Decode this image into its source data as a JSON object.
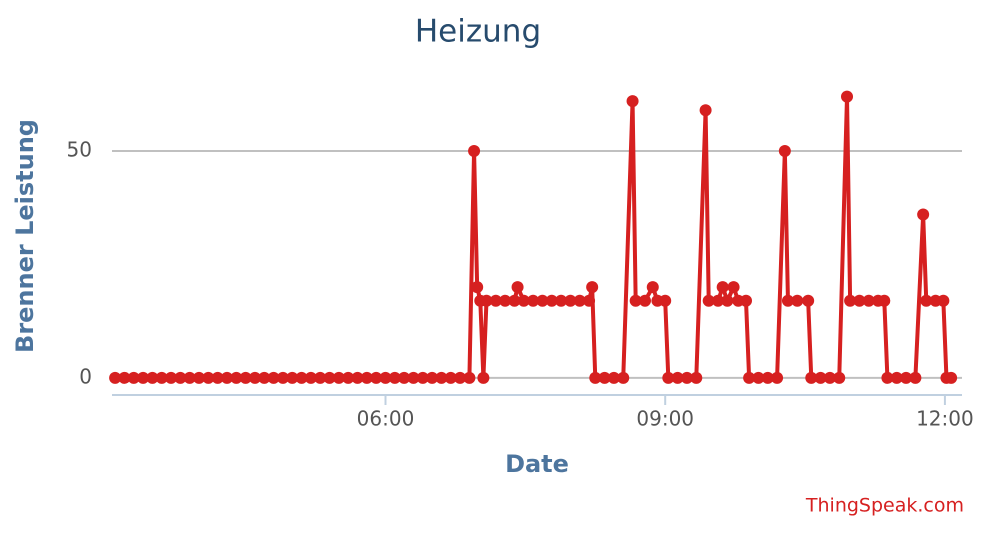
{
  "chart_data": {
    "type": "line",
    "title": "Heizung",
    "xlabel": "Date",
    "ylabel": "Brenner Leistung",
    "credit": "ThingSpeak.com",
    "color": "#d62020",
    "x": [
      "03:06",
      "03:12",
      "03:18",
      "03:24",
      "03:30",
      "03:36",
      "03:42",
      "03:48",
      "03:54",
      "04:00",
      "04:06",
      "04:12",
      "04:18",
      "04:24",
      "04:30",
      "04:36",
      "04:42",
      "04:48",
      "04:54",
      "05:00",
      "05:06",
      "05:12",
      "05:18",
      "05:24",
      "05:30",
      "05:36",
      "05:42",
      "05:48",
      "05:54",
      "06:00",
      "06:06",
      "06:12",
      "06:18",
      "06:24",
      "06:30",
      "06:36",
      "06:42",
      "06:48",
      "06:54",
      "06:57",
      "06:59",
      "07:01",
      "07:03",
      "07:05",
      "07:11",
      "07:17",
      "07:23",
      "07:25",
      "07:29",
      "07:35",
      "07:41",
      "07:47",
      "07:53",
      "07:59",
      "08:05",
      "08:11",
      "08:13",
      "08:15",
      "08:21",
      "08:27",
      "08:33",
      "08:39",
      "08:41",
      "08:47",
      "08:52",
      "08:55",
      "09:00",
      "09:02",
      "09:08",
      "09:14",
      "09:20",
      "09:26",
      "09:28",
      "09:34",
      "09:37",
      "09:40",
      "09:44",
      "09:47",
      "09:52",
      "09:54",
      "10:00",
      "10:06",
      "10:12",
      "10:17",
      "10:19",
      "10:25",
      "10:32",
      "10:34",
      "10:40",
      "10:46",
      "10:52",
      "10:57",
      "10:59",
      "11:05",
      "11:11",
      "11:17",
      "11:21",
      "11:23",
      "11:29",
      "11:35",
      "11:41",
      "11:46",
      "11:48",
      "11:54",
      "11:59",
      "12:01",
      "12:04"
    ],
    "values": [
      0,
      0,
      0,
      0,
      0,
      0,
      0,
      0,
      0,
      0,
      0,
      0,
      0,
      0,
      0,
      0,
      0,
      0,
      0,
      0,
      0,
      0,
      0,
      0,
      0,
      0,
      0,
      0,
      0,
      0,
      0,
      0,
      0,
      0,
      0,
      0,
      0,
      0,
      0,
      50,
      20,
      17,
      0,
      17,
      17,
      17,
      17,
      20,
      17,
      17,
      17,
      17,
      17,
      17,
      17,
      17,
      20,
      0,
      0,
      0,
      0,
      61,
      17,
      17,
      20,
      17,
      17,
      0,
      0,
      0,
      0,
      59,
      17,
      17,
      20,
      17,
      20,
      17,
      17,
      0,
      0,
      0,
      0,
      50,
      17,
      17,
      17,
      0,
      0,
      0,
      0,
      62,
      17,
      17,
      17,
      17,
      17,
      0,
      0,
      0,
      0,
      36,
      17,
      17,
      17,
      0,
      0
    ],
    "xlim": [
      "03:04",
      "12:11"
    ],
    "xticks": [
      "06:00",
      "09:00",
      "12:00"
    ],
    "ylim": [
      -4,
      65
    ],
    "yticks": [
      0,
      50
    ],
    "grid": true
  }
}
